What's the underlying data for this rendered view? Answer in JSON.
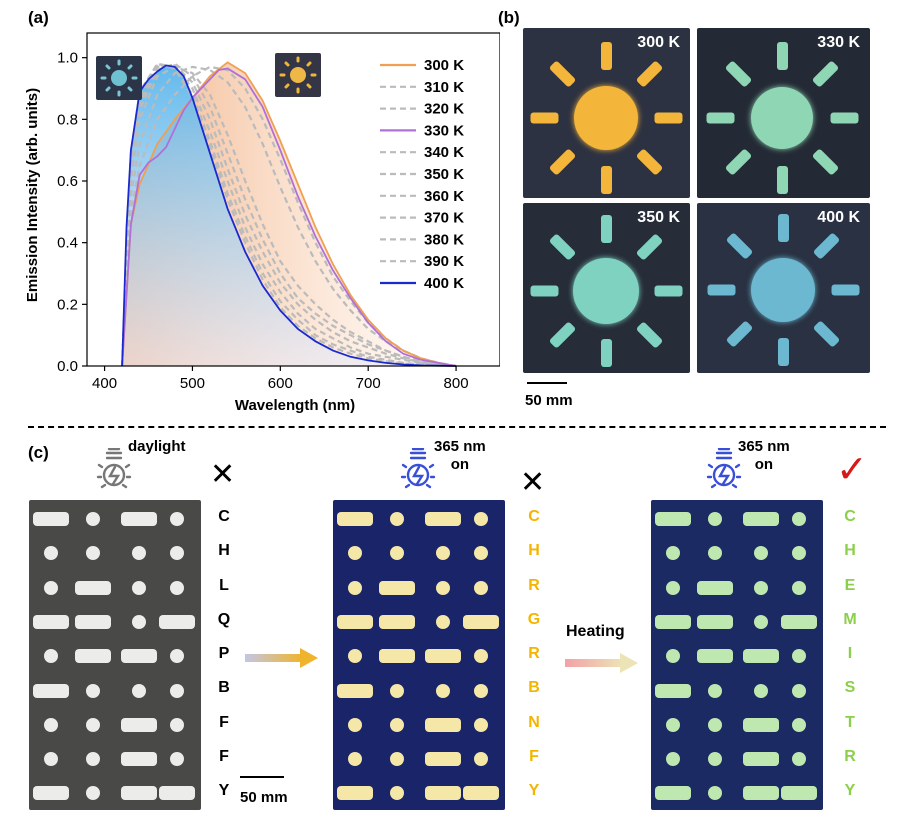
{
  "panel_a": {
    "label": "(a)",
    "chart_data": {
      "type": "line",
      "xlabel": "Wavelength (nm)",
      "ylabel": "Emission Intensity (arb. units)",
      "xlim": [
        380,
        850
      ],
      "ylim": [
        0,
        1.08
      ],
      "xticks": [
        "400",
        "500",
        "600",
        "700",
        "800"
      ],
      "yticks": [
        "0.0",
        "0.2",
        "0.4",
        "0.6",
        "0.8",
        "1.0"
      ],
      "legend_position": "top-right",
      "series": [
        {
          "name": "300 K",
          "color": "#f0a050",
          "style": "solid",
          "x": [
            420,
            430,
            440,
            460,
            480,
            500,
            520,
            540,
            560,
            580,
            600,
            620,
            640,
            660,
            680,
            700,
            720,
            740,
            760,
            780,
            800
          ],
          "y": [
            0,
            0.46,
            0.59,
            0.72,
            0.8,
            0.87,
            0.94,
            0.985,
            0.95,
            0.86,
            0.73,
            0.59,
            0.45,
            0.33,
            0.23,
            0.15,
            0.09,
            0.05,
            0.025,
            0.01,
            0
          ]
        },
        {
          "name": "310 K",
          "color": "#bbbbbb",
          "style": "dashed",
          "x": [
            420,
            430,
            440,
            460,
            480,
            500,
            520,
            540,
            560,
            580,
            600,
            620,
            640,
            660,
            680,
            700,
            720,
            740,
            760,
            780,
            800
          ],
          "y": [
            0,
            0.5,
            0.65,
            0.8,
            0.88,
            0.94,
            0.97,
            0.96,
            0.9,
            0.8,
            0.67,
            0.53,
            0.4,
            0.29,
            0.21,
            0.14,
            0.09,
            0.05,
            0.025,
            0.01,
            0
          ]
        },
        {
          "name": "320 K",
          "color": "#bbbbbb",
          "style": "dashed",
          "x": [
            420,
            430,
            440,
            460,
            480,
            500,
            520,
            540,
            560,
            580,
            600,
            620,
            640,
            660,
            680,
            700,
            720,
            740,
            760,
            780,
            800
          ],
          "y": [
            0,
            0.55,
            0.72,
            0.88,
            0.95,
            0.97,
            0.96,
            0.92,
            0.84,
            0.72,
            0.58,
            0.45,
            0.34,
            0.25,
            0.18,
            0.12,
            0.08,
            0.05,
            0.025,
            0.01,
            0
          ]
        },
        {
          "name": "330 K",
          "color": "#b070d8",
          "style": "solid",
          "x": [
            420,
            430,
            440,
            450,
            460,
            470,
            480,
            490,
            500,
            510,
            520,
            530,
            540,
            560,
            580,
            600,
            620,
            640,
            660,
            680,
            700,
            720,
            740,
            760,
            780,
            800
          ],
          "y": [
            0,
            0.46,
            0.62,
            0.66,
            0.68,
            0.71,
            0.77,
            0.83,
            0.87,
            0.9,
            0.93,
            0.96,
            0.965,
            0.93,
            0.84,
            0.7,
            0.55,
            0.42,
            0.31,
            0.22,
            0.14,
            0.08,
            0.04,
            0.02,
            0.01,
            0
          ]
        },
        {
          "name": "340 K",
          "color": "#bbbbbb",
          "style": "dashed",
          "x": [
            420,
            430,
            440,
            460,
            480,
            500,
            520,
            540,
            560,
            580,
            600,
            620,
            640,
            660,
            680,
            700,
            720,
            740,
            760,
            780,
            800
          ],
          "y": [
            0,
            0.6,
            0.8,
            0.94,
            0.97,
            0.95,
            0.88,
            0.75,
            0.6,
            0.46,
            0.34,
            0.26,
            0.2,
            0.15,
            0.11,
            0.08,
            0.05,
            0.03,
            0.015,
            0.005,
            0
          ]
        },
        {
          "name": "350 K",
          "color": "#bbbbbb",
          "style": "dashed",
          "x": [
            420,
            430,
            440,
            460,
            480,
            500,
            520,
            540,
            560,
            580,
            600,
            620,
            640,
            660,
            680,
            700,
            720,
            740,
            760,
            780,
            800
          ],
          "y": [
            0,
            0.62,
            0.83,
            0.96,
            0.98,
            0.94,
            0.84,
            0.69,
            0.54,
            0.41,
            0.3,
            0.22,
            0.17,
            0.13,
            0.1,
            0.07,
            0.05,
            0.03,
            0.015,
            0.005,
            0
          ]
        },
        {
          "name": "360 K",
          "color": "#bbbbbb",
          "style": "dashed",
          "x": [
            420,
            430,
            440,
            460,
            480,
            500,
            520,
            540,
            560,
            580,
            600,
            620,
            640,
            660,
            680,
            700,
            720,
            740,
            760,
            780,
            800
          ],
          "y": [
            0,
            0.64,
            0.85,
            0.97,
            0.975,
            0.92,
            0.8,
            0.64,
            0.49,
            0.37,
            0.27,
            0.2,
            0.15,
            0.11,
            0.08,
            0.06,
            0.04,
            0.025,
            0.012,
            0.005,
            0
          ]
        },
        {
          "name": "370 K",
          "color": "#bbbbbb",
          "style": "dashed",
          "x": [
            420,
            430,
            440,
            460,
            480,
            500,
            520,
            540,
            560,
            580,
            600,
            620,
            640,
            660,
            680,
            700,
            720,
            740,
            760,
            780,
            800
          ],
          "y": [
            0,
            0.66,
            0.87,
            0.975,
            0.97,
            0.9,
            0.76,
            0.6,
            0.45,
            0.33,
            0.24,
            0.17,
            0.12,
            0.09,
            0.06,
            0.04,
            0.03,
            0.02,
            0.01,
            0.005,
            0
          ]
        },
        {
          "name": "380 K",
          "color": "#bbbbbb",
          "style": "dashed",
          "x": [
            420,
            430,
            440,
            460,
            480,
            500,
            520,
            540,
            560,
            580,
            600,
            620,
            640,
            660,
            680,
            700,
            720,
            740,
            760,
            780,
            800
          ],
          "y": [
            0,
            0.68,
            0.88,
            0.98,
            0.97,
            0.88,
            0.73,
            0.56,
            0.42,
            0.3,
            0.21,
            0.15,
            0.1,
            0.07,
            0.05,
            0.03,
            0.02,
            0.01,
            0.005,
            0.002,
            0
          ]
        },
        {
          "name": "390 K",
          "color": "#bbbbbb",
          "style": "dashed",
          "x": [
            420,
            430,
            440,
            460,
            480,
            500,
            520,
            540,
            560,
            580,
            600,
            620,
            640,
            660,
            680,
            700,
            720,
            740,
            760,
            780,
            800
          ],
          "y": [
            0,
            0.69,
            0.89,
            0.98,
            0.965,
            0.87,
            0.71,
            0.54,
            0.4,
            0.28,
            0.19,
            0.13,
            0.09,
            0.06,
            0.04,
            0.025,
            0.015,
            0.008,
            0.004,
            0.002,
            0
          ]
        },
        {
          "name": "400 K",
          "color": "#1a2ad0",
          "style": "solid",
          "x": [
            420,
            425,
            430,
            440,
            450,
            460,
            470,
            480,
            490,
            500,
            510,
            520,
            540,
            560,
            580,
            600,
            620,
            640,
            660,
            680,
            700,
            720,
            740,
            760,
            780,
            800
          ],
          "y": [
            0,
            0.45,
            0.7,
            0.89,
            0.93,
            0.955,
            0.975,
            0.97,
            0.94,
            0.87,
            0.78,
            0.69,
            0.51,
            0.37,
            0.26,
            0.18,
            0.12,
            0.08,
            0.05,
            0.03,
            0.018,
            0.01,
            0.005,
            0.002,
            0.001,
            0
          ]
        }
      ]
    }
  },
  "panel_b": {
    "label": "(b)",
    "photos": [
      {
        "temp": "300 K",
        "bg": "#2d3242",
        "glow": "#f3b53a"
      },
      {
        "temp": "330 K",
        "bg": "#242a35",
        "glow": "#8fd6b4"
      },
      {
        "temp": "350 K",
        "bg": "#262c38",
        "glow": "#7fd2c0"
      },
      {
        "temp": "400 K",
        "bg": "#293142",
        "glow": "#6bb8d0"
      }
    ],
    "scale": "50 mm"
  },
  "panel_c": {
    "label": "(c)",
    "card1": {
      "note": "daylight",
      "verdict": "✕",
      "letters": [
        "C",
        "H",
        "L",
        "Q",
        "P",
        "B",
        "F",
        "F",
        "Y"
      ],
      "letter_color": "#000000",
      "bg": "#494a48",
      "mark": "#ececea"
    },
    "card2": {
      "note_line1": "365 nm",
      "note_line2": "on",
      "verdict": "✕",
      "letters": [
        "C",
        "H",
        "R",
        "G",
        "R",
        "B",
        "N",
        "F",
        "Y"
      ],
      "letter_color": "#f5b400",
      "bg": "#1a2468",
      "mark": "#f4e7a8"
    },
    "card3": {
      "note_line1": "365 nm",
      "note_line2": "on",
      "verdict": "✓",
      "letters": [
        "C",
        "H",
        "E",
        "M",
        "I",
        "S",
        "T",
        "R",
        "Y"
      ],
      "letter_color": "#8ccf4a",
      "bg": "#1b2a63",
      "mark": "#bfe7b0"
    },
    "heating": "Heating",
    "scale": "50 mm"
  }
}
